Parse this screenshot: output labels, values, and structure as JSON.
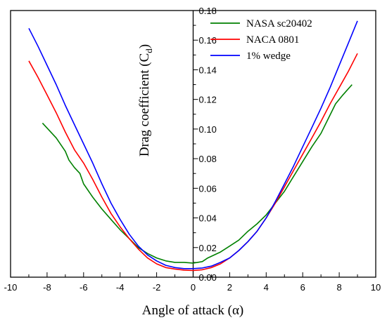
{
  "chart_data": {
    "type": "line",
    "title": "",
    "xlabel": "Angle of attack (α)",
    "ylabel": "Drag coefficient (C",
    "ylabel_subscript": "d",
    "ylabel_suffix": ")",
    "xlim": [
      -10,
      10
    ],
    "ylim": [
      0.0,
      0.18
    ],
    "x_ticks": [
      -10,
      -8,
      -6,
      -4,
      -2,
      0,
      2,
      4,
      6,
      8,
      10
    ],
    "x_tick_labels": [
      "-10",
      "-8",
      "-6",
      "-4",
      "-2",
      "0",
      "2",
      "4",
      "6",
      "8",
      "10"
    ],
    "y_ticks": [
      0.0,
      0.02,
      0.04,
      0.06,
      0.08,
      0.1,
      0.12,
      0.14,
      0.16,
      0.18
    ],
    "y_tick_labels": [
      "0.00",
      "0.02",
      "0.04",
      "0.06",
      "0.08",
      "0.10",
      "0.12",
      "0.14",
      "0.16",
      "0.18"
    ],
    "y_axis_position": "center",
    "grid": false,
    "legend_position": "top-right",
    "series": [
      {
        "name": "NASA sc20402",
        "color": "#008000",
        "x": [
          -8.25,
          -7.5,
          -7.0,
          -6.8,
          -6.5,
          -6.2,
          -6.0,
          -5.5,
          -5.0,
          -4.5,
          -4.0,
          -3.5,
          -3.0,
          -2.5,
          -2.0,
          -1.5,
          -1.0,
          -0.5,
          0.0,
          0.5,
          0.8,
          1.5,
          2.0,
          2.5,
          3.0,
          3.5,
          4.0,
          4.5,
          5.0,
          5.5,
          6.0,
          6.5,
          7.0,
          7.4,
          7.8,
          8.2,
          8.7
        ],
        "y": [
          0.104,
          0.094,
          0.085,
          0.079,
          0.074,
          0.07,
          0.063,
          0.054,
          0.046,
          0.039,
          0.032,
          0.026,
          0.02,
          0.016,
          0.013,
          0.011,
          0.01,
          0.01,
          0.0095,
          0.0105,
          0.013,
          0.017,
          0.021,
          0.025,
          0.031,
          0.036,
          0.042,
          0.05,
          0.058,
          0.068,
          0.078,
          0.088,
          0.097,
          0.107,
          0.117,
          0.123,
          0.13
        ]
      },
      {
        "name": "NACA 0801",
        "color": "#ff0000",
        "x": [
          -9.0,
          -8.5,
          -8.0,
          -7.5,
          -7.0,
          -6.5,
          -6.0,
          -5.5,
          -5.0,
          -4.5,
          -4.0,
          -3.5,
          -3.0,
          -2.5,
          -2.0,
          -1.5,
          -1.0,
          -0.5,
          0.0,
          0.5,
          1.0,
          1.5,
          2.0,
          2.5,
          3.0,
          3.5,
          4.0,
          4.5,
          5.0,
          5.5,
          6.0,
          6.5,
          7.0,
          7.5,
          8.0,
          8.5,
          9.0
        ],
        "y": [
          0.146,
          0.135,
          0.123,
          0.111,
          0.098,
          0.086,
          0.077,
          0.066,
          0.054,
          0.043,
          0.034,
          0.026,
          0.019,
          0.013,
          0.009,
          0.0065,
          0.0055,
          0.0048,
          0.0045,
          0.005,
          0.0065,
          0.009,
          0.013,
          0.018,
          0.024,
          0.031,
          0.04,
          0.05,
          0.061,
          0.072,
          0.083,
          0.094,
          0.105,
          0.117,
          0.128,
          0.139,
          0.151
        ]
      },
      {
        "name": "1% wedge",
        "color": "#0000ff",
        "x": [
          -9.0,
          -8.5,
          -8.0,
          -7.5,
          -7.0,
          -6.5,
          -6.0,
          -5.5,
          -5.0,
          -4.5,
          -4.0,
          -3.5,
          -3.0,
          -2.5,
          -2.0,
          -1.5,
          -1.0,
          -0.5,
          0.0,
          0.5,
          1.0,
          1.5,
          2.0,
          2.5,
          3.0,
          3.5,
          4.0,
          4.5,
          5.0,
          5.5,
          6.0,
          6.5,
          7.0,
          7.5,
          8.0,
          8.5,
          9.0
        ],
        "y": [
          0.168,
          0.156,
          0.143,
          0.13,
          0.116,
          0.103,
          0.09,
          0.077,
          0.063,
          0.05,
          0.039,
          0.029,
          0.021,
          0.015,
          0.011,
          0.008,
          0.0065,
          0.0058,
          0.0058,
          0.0062,
          0.0075,
          0.01,
          0.013,
          0.018,
          0.024,
          0.031,
          0.04,
          0.051,
          0.063,
          0.075,
          0.088,
          0.101,
          0.114,
          0.128,
          0.143,
          0.158,
          0.173
        ]
      }
    ]
  }
}
